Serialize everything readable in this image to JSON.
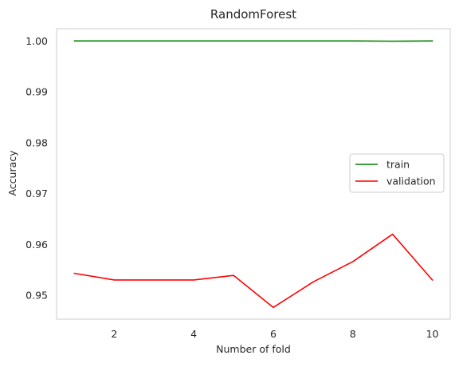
{
  "chart_data": {
    "type": "line",
    "title": "RandomForest",
    "xlabel": "Number of fold",
    "ylabel": "Accuracy",
    "x": [
      1,
      2,
      3,
      4,
      5,
      6,
      7,
      8,
      9,
      10
    ],
    "xticks": [
      2,
      4,
      6,
      8,
      10
    ],
    "yticks": [
      0.95,
      0.96,
      0.97,
      0.98,
      0.99,
      1.0
    ],
    "ytick_labels": [
      "0.95",
      "0.96",
      "0.97",
      "0.98",
      "0.99",
      "1.00"
    ],
    "xlim": [
      0.55,
      10.45
    ],
    "ylim": [
      0.9453,
      1.0024
    ],
    "grid": false,
    "legend_position": "center-right",
    "series": [
      {
        "name": "train",
        "color": "#008000",
        "values": [
          1.0,
          1.0,
          1.0,
          1.0,
          1.0,
          1.0,
          1.0,
          1.0,
          0.99995,
          1.0
        ]
      },
      {
        "name": "validation",
        "color": "#ff0000",
        "values": [
          0.9543,
          0.953,
          0.953,
          0.953,
          0.9539,
          0.9476,
          0.9526,
          0.9566,
          0.962,
          0.953
        ]
      }
    ]
  }
}
